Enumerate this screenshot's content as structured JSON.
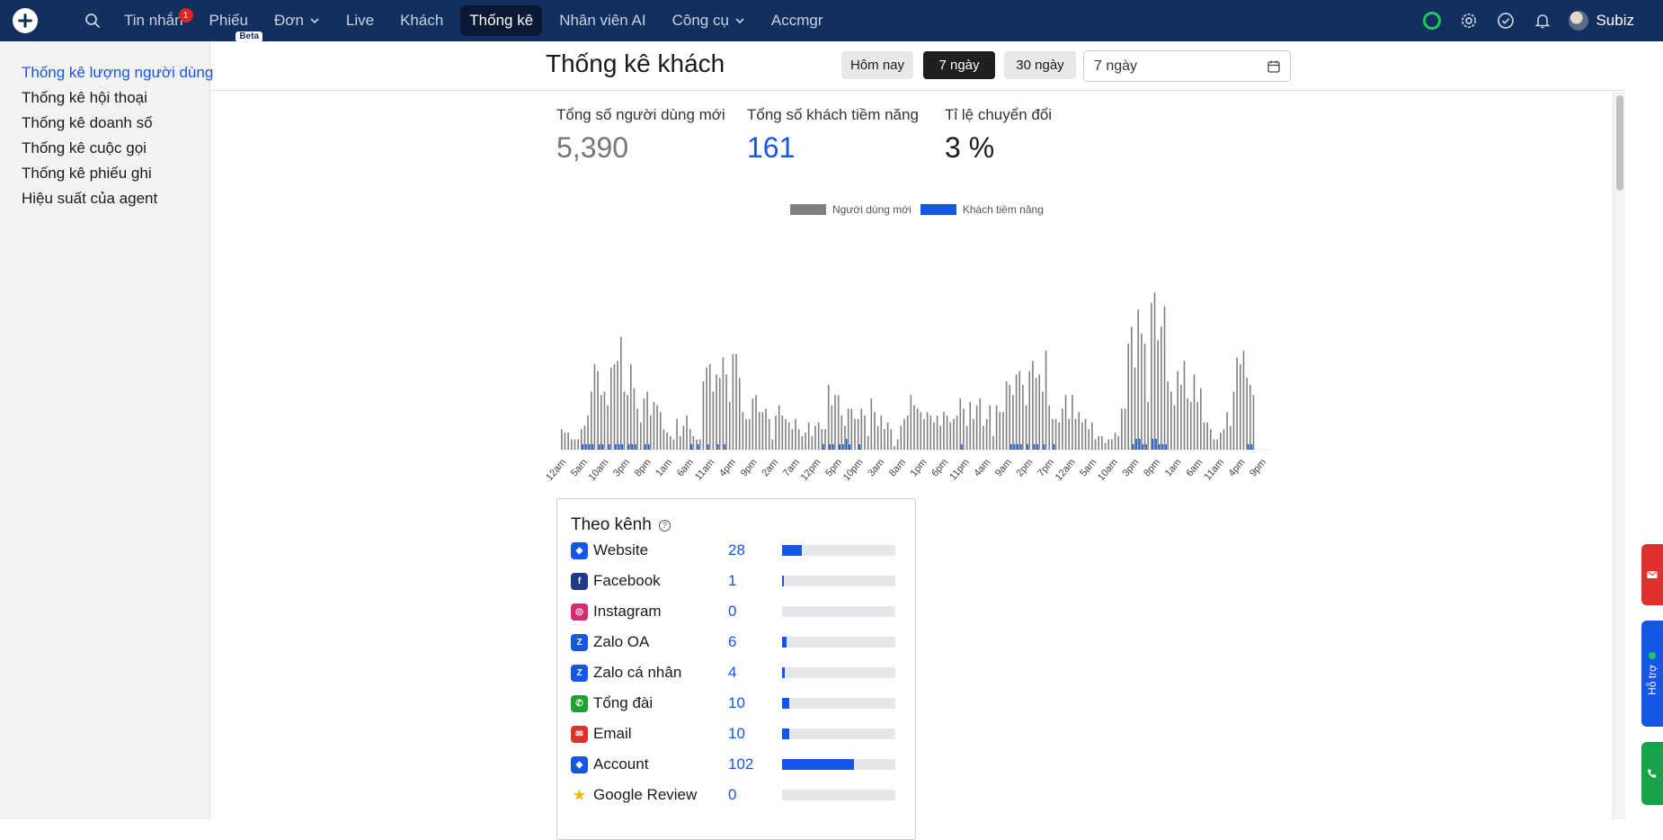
{
  "nav": {
    "items": [
      {
        "label": "Tin nhắn",
        "badge": "1"
      },
      {
        "label": "Phiếu",
        "tag": "Beta"
      },
      {
        "label": "Đơn"
      },
      {
        "label": "Live"
      },
      {
        "label": "Khách"
      },
      {
        "label": "Thống kê",
        "active": true
      },
      {
        "label": "Nhân viên AI"
      },
      {
        "label": "Công cụ"
      },
      {
        "label": "Accmgr"
      }
    ],
    "user_name": "Subiz"
  },
  "sidebar": {
    "items": [
      {
        "label": "Thống kê lượng người dùng",
        "active": true
      },
      {
        "label": "Thống kê hội thoại"
      },
      {
        "label": "Thống kê doanh số"
      },
      {
        "label": "Thống kê cuộc gọi"
      },
      {
        "label": "Thống kê phiếu ghi"
      },
      {
        "label": "Hiệu suất của agent"
      }
    ]
  },
  "header": {
    "title": "Thống kê khách",
    "ranges": [
      "Hôm nay",
      "7 ngày",
      "30 ngày"
    ],
    "selected_range": "7 ngày",
    "date_select_value": "7 ngày"
  },
  "stats": [
    {
      "label": "Tổng số người dùng mới",
      "value": "5,390"
    },
    {
      "label": "Tổng số khách tiềm năng",
      "value": "161"
    },
    {
      "label": "Tỉ lệ chuyển đổi",
      "value": "3 %"
    }
  ],
  "chart_data": {
    "type": "bar",
    "series": [
      {
        "name": "Người dùng mới",
        "color": "#808080"
      },
      {
        "name": "Khách tiềm năng",
        "color": "#1456e8"
      }
    ],
    "x_tick_labels": [
      "12am",
      "5am",
      "10am",
      "3pm",
      "8pm",
      "1am",
      "6am",
      "11am",
      "4pm",
      "9pm",
      "2am",
      "7am",
      "12pm",
      "5pm",
      "10pm",
      "3am",
      "8am",
      "1pm",
      "6pm",
      "11pm",
      "4am",
      "9am",
      "2pm",
      "7pm",
      "12am",
      "5am",
      "10am",
      "3pm",
      "8pm",
      "1am",
      "6am",
      "11am",
      "4pm",
      "9pm"
    ],
    "new_users": [
      6,
      5,
      5,
      3,
      3,
      3,
      6,
      7,
      10,
      17,
      25,
      23,
      16,
      17,
      13,
      24,
      25,
      26,
      33,
      17,
      16,
      25,
      18,
      12,
      8,
      15,
      17,
      10,
      14,
      13,
      11,
      6,
      5,
      4,
      3,
      9,
      4,
      7,
      10,
      6,
      4,
      3,
      3,
      20,
      24,
      25,
      17,
      22,
      21,
      27,
      22,
      14,
      28,
      28,
      21,
      11,
      9,
      9,
      15,
      16,
      11,
      11,
      12,
      9,
      3,
      10,
      13,
      10,
      9,
      8,
      6,
      9,
      6,
      4,
      5,
      8,
      4,
      7,
      8,
      6,
      6,
      19,
      13,
      16,
      16,
      10,
      7,
      12,
      12,
      9,
      9,
      12,
      10,
      4,
      15,
      11,
      7,
      10,
      6,
      8,
      6,
      1,
      3,
      7,
      9,
      10,
      16,
      13,
      12,
      11,
      9,
      11,
      10,
      8,
      10,
      7,
      11,
      10,
      8,
      9,
      10,
      15,
      12,
      7,
      14,
      9,
      13,
      15,
      7,
      9,
      13,
      4,
      13,
      11,
      11,
      20,
      19,
      16,
      22,
      23,
      19,
      13,
      23,
      26,
      21,
      22,
      17,
      29,
      13,
      9,
      9,
      8,
      12,
      16,
      9,
      16,
      9,
      11,
      8,
      9,
      6,
      8,
      3,
      4,
      4,
      2,
      3,
      3,
      5,
      4,
      12,
      12,
      31,
      36,
      24,
      41,
      34,
      31,
      14,
      43,
      46,
      32,
      36,
      42,
      20,
      17,
      13,
      23,
      19,
      26,
      15,
      14,
      22,
      14,
      18,
      8,
      8,
      6,
      3,
      3,
      5,
      6,
      11,
      7,
      17,
      27,
      25,
      29,
      21,
      19,
      16,
      0,
      0,
      0,
      0
    ],
    "leads": [
      0,
      0,
      0,
      0,
      0,
      0,
      1,
      1,
      1,
      1,
      0,
      1,
      1,
      0,
      1,
      0,
      1,
      1,
      1,
      0,
      1,
      1,
      1,
      0,
      0,
      1,
      1,
      0,
      0,
      0,
      0,
      0,
      0,
      0,
      0,
      0,
      0,
      0,
      0,
      1,
      0,
      1,
      0,
      0,
      1,
      0,
      0,
      1,
      0,
      1,
      0,
      0,
      0,
      0,
      0,
      0,
      0,
      0,
      0,
      0,
      0,
      0,
      0,
      0,
      0,
      0,
      0,
      0,
      0,
      0,
      0,
      0,
      0,
      0,
      0,
      0,
      0,
      0,
      0,
      1,
      0,
      1,
      1,
      0,
      1,
      1,
      2,
      1,
      0,
      0,
      1,
      0,
      0,
      0,
      0,
      0,
      0,
      0,
      0,
      0,
      0,
      0,
      0,
      0,
      0,
      0,
      0,
      0,
      0,
      0,
      0,
      0,
      0,
      0,
      0,
      0,
      0,
      0,
      0,
      0,
      0,
      1,
      0,
      0,
      0,
      0,
      0,
      0,
      0,
      0,
      0,
      0,
      0,
      0,
      0,
      0,
      1,
      1,
      1,
      1,
      0,
      1,
      0,
      1,
      1,
      0,
      1,
      0,
      0,
      1,
      0,
      0,
      0,
      0,
      0,
      0,
      0,
      0,
      0,
      0,
      0,
      0,
      0,
      0,
      0,
      0,
      0,
      0,
      0,
      0,
      0,
      0,
      0,
      1,
      2,
      2,
      1,
      1,
      0,
      2,
      2,
      1,
      1,
      1,
      0,
      0,
      0,
      0,
      0,
      0,
      0,
      0,
      0,
      0,
      0,
      0,
      0,
      0,
      0,
      0,
      0,
      0,
      0,
      0,
      0,
      0,
      0,
      0,
      1,
      1,
      0,
      0,
      0,
      0,
      0,
      0,
      0
    ],
    "ylim": [
      0,
      50
    ]
  },
  "channels": {
    "title": "Theo kênh",
    "help_icon": "question-circle-icon",
    "max": 160,
    "rows": [
      {
        "name": "Website",
        "count": "28",
        "value": 28,
        "icon": "chat-icon",
        "color": "#1456e8"
      },
      {
        "name": "Facebook",
        "count": "1",
        "value": 1,
        "icon": "facebook-icon",
        "color": "#1e3a8a"
      },
      {
        "name": "Instagram",
        "count": "0",
        "value": 0,
        "icon": "instagram-icon",
        "color": "#d62976"
      },
      {
        "name": "Zalo OA",
        "count": "6",
        "value": 6,
        "icon": "zalo-oa-icon",
        "color": "#1456e8"
      },
      {
        "name": "Zalo cá nhân",
        "count": "4",
        "value": 4,
        "icon": "zalo-icon",
        "color": "#1456e8"
      },
      {
        "name": "Tổng đài",
        "count": "10",
        "value": 10,
        "icon": "phone-icon",
        "color": "#22a034"
      },
      {
        "name": "Email",
        "count": "10",
        "value": 10,
        "icon": "email-icon",
        "color": "#e0302b"
      },
      {
        "name": "Account",
        "count": "102",
        "value": 102,
        "icon": "chat-icon",
        "color": "#1456e8"
      },
      {
        "name": "Google Review",
        "count": "0",
        "value": 0,
        "icon": "star-icon",
        "color": "#f5b400"
      }
    ]
  },
  "floating": {
    "support_label": "Hỗ trợ"
  }
}
